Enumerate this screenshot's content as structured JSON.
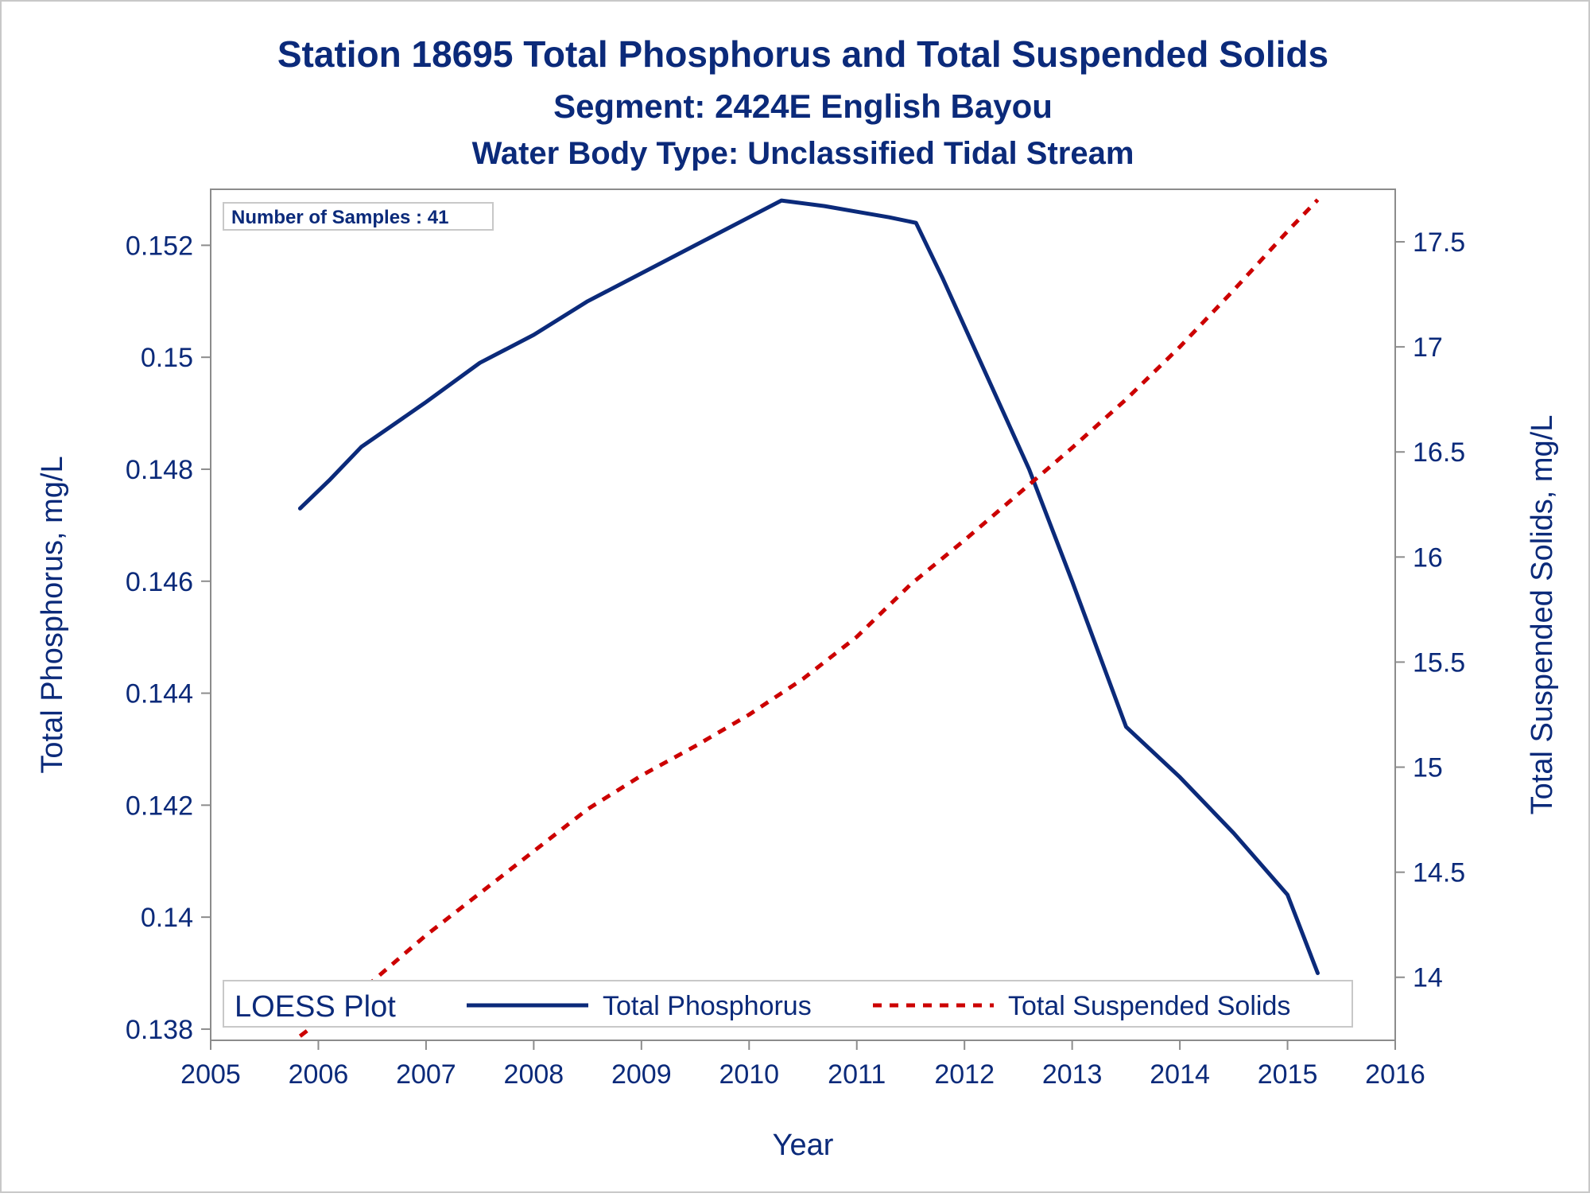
{
  "chart_data": {
    "type": "line",
    "title": "Station 18695  Total Phosphorus and Total Suspended Solids",
    "subtitle": "Segment: 2424E  English Bayou",
    "subtitle2": "Water Body Type: Unclassified Tidal Stream",
    "xlabel": "Year",
    "ylabel": "Total Phosphorus, mg/L",
    "y2label": "Total Suspended Solids, mg/L",
    "xlim": [
      2005,
      2016
    ],
    "ylim": [
      0.1378,
      0.153
    ],
    "y2lim": [
      13.7,
      17.75
    ],
    "x_ticks": [
      "2005",
      "2006",
      "2007",
      "2008",
      "2009",
      "2010",
      "2011",
      "2012",
      "2013",
      "2014",
      "2015",
      "2016"
    ],
    "y_ticks": [
      "0.138",
      "0.14",
      "0.142",
      "0.144",
      "0.146",
      "0.148",
      "0.15",
      "0.152"
    ],
    "y2_ticks": [
      "14",
      "14.5",
      "15",
      "15.5",
      "16",
      "16.5",
      "17",
      "17.5"
    ],
    "annotation": "Number of Samples : 41",
    "legend": {
      "title": "LOESS Plot",
      "placement": "bottom-inside",
      "entries": [
        "Total Phosphorus",
        "Total Suspended Solids"
      ]
    },
    "colors": {
      "phosphorus": "#0b2a7a",
      "tss": "#cc0000",
      "text": "#0b2a7a",
      "axis": "#8c8c8c"
    },
    "series": [
      {
        "name": "Total Phosphorus",
        "axis": "left",
        "x": [
          2005.83,
          2006.1,
          2006.4,
          2006.7,
          2007.0,
          2007.5,
          2008.0,
          2008.5,
          2009.0,
          2009.5,
          2010.0,
          2010.3,
          2010.7,
          2011.0,
          2011.3,
          2011.55,
          2011.8,
          2012.2,
          2012.6,
          2013.0,
          2013.5,
          2014.0,
          2014.5,
          2015.0,
          2015.28
        ],
        "values": [
          0.1473,
          0.1478,
          0.1484,
          0.1488,
          0.1492,
          0.1499,
          0.1504,
          0.151,
          0.1515,
          0.152,
          0.1525,
          0.1528,
          0.1527,
          0.1526,
          0.1525,
          0.1524,
          0.1514,
          0.1497,
          0.148,
          0.146,
          0.1434,
          0.1425,
          0.1415,
          0.1404,
          0.139
        ]
      },
      {
        "name": "Total Suspended Solids",
        "axis": "right",
        "x": [
          2005.83,
          2006.5,
          2007.0,
          2007.5,
          2008.0,
          2008.5,
          2009.0,
          2009.5,
          2010.0,
          2010.5,
          2011.0,
          2011.5,
          2012.0,
          2012.5,
          2013.0,
          2013.5,
          2014.0,
          2014.5,
          2015.0,
          2015.28
        ],
        "values": [
          13.72,
          13.98,
          14.2,
          14.4,
          14.6,
          14.8,
          14.96,
          15.1,
          15.25,
          15.42,
          15.62,
          15.87,
          16.08,
          16.3,
          16.52,
          16.75,
          17.0,
          17.27,
          17.55,
          17.7
        ]
      }
    ]
  }
}
